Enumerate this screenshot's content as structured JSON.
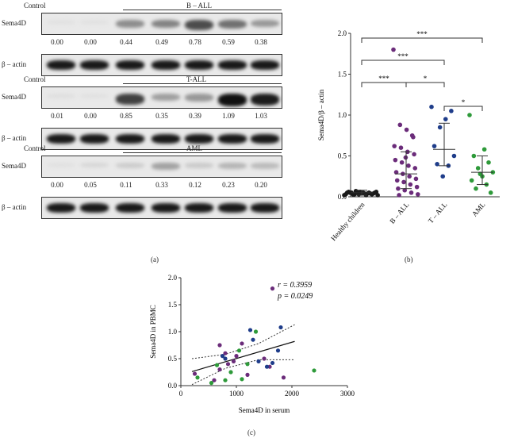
{
  "panel_a": {
    "label": "(a)",
    "blots": [
      {
        "group": "B – ALL",
        "control": "Control",
        "target": "Sema4D",
        "values": [
          "0.00",
          "0.00",
          "0.44",
          "0.49",
          "0.78",
          "0.59",
          "0.38"
        ],
        "loading": "β – actin"
      },
      {
        "group": "T-ALL",
        "control": "Control",
        "target": "Sema4D",
        "values": [
          "0.01",
          "0.00",
          "0.85",
          "0.35",
          "0.39",
          "1.09",
          "1.03"
        ],
        "loading": "β – actin"
      },
      {
        "group": "AML",
        "control": "Control",
        "target": "Sema4D",
        "values": [
          "0.00",
          "0.05",
          "0.11",
          "0.33",
          "0.12",
          "0.23",
          "0.20"
        ],
        "loading": "β – actin"
      }
    ]
  },
  "panel_b": {
    "label": "(b)",
    "sig_marks": [
      "***",
      "***",
      "***",
      "*",
      "*"
    ]
  },
  "panel_c": {
    "label": "(c)",
    "r_label": "r = 0.3959",
    "p_label": "p = 0.0249"
  },
  "chart_data": [
    {
      "type": "scatter",
      "title": "",
      "xlabel": "",
      "ylabel": "Sema4D/β – actin",
      "categories": [
        "Healthy children",
        "B – ALL",
        "T – ALL",
        "AML"
      ],
      "ylim": [
        0,
        2.0
      ],
      "yticks": [
        "0.0",
        "0.5",
        "1.0",
        "1.5",
        "2.0"
      ],
      "colors": [
        "#1a1a1a",
        "#6b2c7a",
        "#1f3d8a",
        "#2e9a3a"
      ],
      "series": [
        {
          "values": [
            0.02,
            0.03,
            0.04,
            0.05,
            0.05,
            0.06,
            0.04,
            0.03,
            0.07,
            0.02,
            0.06,
            0.05,
            0.04,
            0.03,
            0.05,
            0.06,
            0.04,
            0.02,
            0.03,
            0.05,
            0.04,
            0.06,
            0.03,
            0.05
          ]
        },
        {
          "values": [
            1.8,
            0.88,
            0.82,
            0.73,
            0.62,
            0.6,
            0.55,
            0.52,
            0.45,
            0.42,
            0.38,
            0.35,
            0.3,
            0.28,
            0.25,
            0.22,
            0.2,
            0.18,
            0.15,
            0.12,
            0.1,
            0.08,
            0.05,
            0.03,
            0.02,
            0.48,
            0.75
          ]
        },
        {
          "values": [
            1.1,
            1.05,
            0.95,
            0.85,
            0.62,
            0.5,
            0.38,
            0.25,
            0.4
          ]
        },
        {
          "values": [
            1.0,
            0.58,
            0.5,
            0.42,
            0.35,
            0.3,
            0.25,
            0.2,
            0.15,
            0.1,
            0.05,
            0.28
          ]
        }
      ],
      "means": [
        0.05,
        0.28,
        0.58,
        0.3
      ],
      "sd": [
        [
          0.02,
          0.08
        ],
        [
          0.1,
          0.55
        ],
        [
          0.38,
          0.9
        ],
        [
          0.15,
          0.5
        ]
      ]
    },
    {
      "type": "scatter",
      "title": "",
      "xlabel": "Sema4D in serum",
      "ylabel": "Sema4D in PBMC",
      "xlim": [
        0,
        3000
      ],
      "ylim": [
        0,
        2.0
      ],
      "xticks": [
        "0",
        "1000",
        "2000",
        "3000"
      ],
      "yticks": [
        "0.0",
        "0.5",
        "1.0",
        "1.5",
        "2.0"
      ],
      "regression": {
        "x0": 200,
        "y0": 0.26,
        "x1": 2050,
        "y1": 0.82
      },
      "ci_upper": [
        [
          200,
          0.5
        ],
        [
          800,
          0.58
        ],
        [
          1400,
          0.78
        ],
        [
          2050,
          1.13
        ]
      ],
      "ci_lower": [
        [
          200,
          0.02
        ],
        [
          800,
          0.32
        ],
        [
          1400,
          0.48
        ],
        [
          2050,
          0.48
        ]
      ],
      "series": [
        {
          "color": "#6b2c7a",
          "points": [
            [
              1650,
              1.8
            ],
            [
              1100,
              0.78
            ],
            [
              700,
              0.75
            ],
            [
              800,
              0.6
            ],
            [
              1500,
              0.5
            ],
            [
              600,
              0.1
            ],
            [
              950,
              0.45
            ],
            [
              1850,
              0.15
            ],
            [
              1200,
              0.2
            ],
            [
              850,
              0.4
            ],
            [
              700,
              0.3
            ],
            [
              1000,
              0.55
            ],
            [
              250,
              0.22
            ],
            [
              1600,
              0.35
            ]
          ]
        },
        {
          "color": "#1f3d8a",
          "points": [
            [
              1250,
              1.03
            ],
            [
              1800,
              1.08
            ],
            [
              1300,
              0.85
            ],
            [
              750,
              0.55
            ],
            [
              1750,
              0.65
            ],
            [
              1550,
              0.35
            ],
            [
              1400,
              0.45
            ],
            [
              800,
              0.5
            ],
            [
              1650,
              0.42
            ]
          ]
        },
        {
          "color": "#2e9a3a",
          "points": [
            [
              1350,
              1.0
            ],
            [
              1050,
              0.65
            ],
            [
              2400,
              0.28
            ],
            [
              650,
              0.38
            ],
            [
              800,
              0.1
            ],
            [
              1100,
              0.12
            ],
            [
              550,
              0.05
            ],
            [
              900,
              0.25
            ],
            [
              300,
              0.15
            ],
            [
              1200,
              0.4
            ]
          ]
        }
      ]
    }
  ]
}
